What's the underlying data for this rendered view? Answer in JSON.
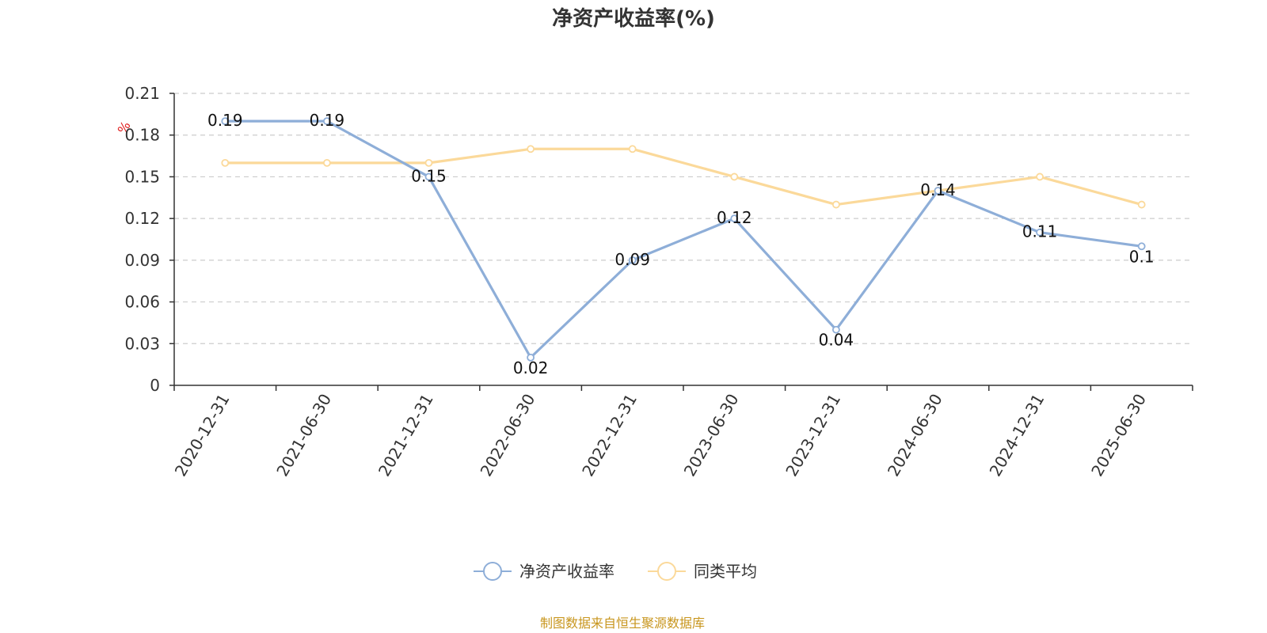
{
  "chart_data": {
    "type": "line",
    "title": "净资产收益率(%)",
    "ylabel": "%",
    "xlabel": "",
    "categories": [
      "2020-12-31",
      "2021-06-30",
      "2021-12-31",
      "2022-06-30",
      "2022-12-31",
      "2023-06-30",
      "2023-12-31",
      "2024-06-30",
      "2024-12-31",
      "2025-06-30"
    ],
    "yticks": [
      "0",
      "0.03",
      "0.06",
      "0.09",
      "0.12",
      "0.15",
      "0.18",
      "0.21"
    ],
    "ylim": [
      0,
      0.21
    ],
    "grid": true,
    "legend_position": "bottom",
    "series": [
      {
        "name": "净资产收益率",
        "color": "#8eaed8",
        "values": [
          0.19,
          0.19,
          0.15,
          0.02,
          0.09,
          0.12,
          0.04,
          0.14,
          0.11,
          0.1
        ],
        "labels": [
          "0.19",
          "0.19",
          "0.15",
          "0.02",
          "0.09",
          "0.12",
          "0.04",
          "0.14",
          "0.11",
          "0.1"
        ]
      },
      {
        "name": "同类平均",
        "color": "#fbd99a",
        "values": [
          0.16,
          0.16,
          0.16,
          0.17,
          0.17,
          0.15,
          0.13,
          0.14,
          0.15,
          0.13
        ]
      }
    ],
    "source": "制图数据来自恒生聚源数据库"
  }
}
